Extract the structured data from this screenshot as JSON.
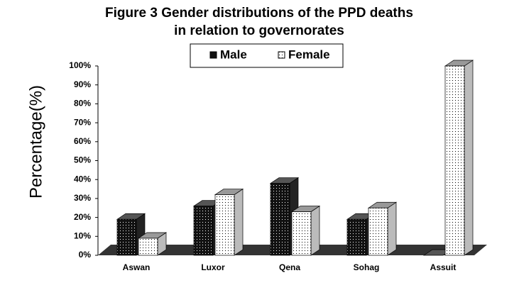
{
  "chart_data": {
    "type": "bar3d",
    "title": "Figure 3 Gender distributions of the PPD deaths",
    "subtitle": "in relation to governorates",
    "y_label": "Percentage(%)",
    "categories": [
      "Aswan",
      "Luxor",
      "Qena",
      "Sohag",
      "Assuit"
    ],
    "series": [
      {
        "name": "Male",
        "color": "#111111",
        "values": [
          19,
          26,
          38,
          19,
          0
        ]
      },
      {
        "name": "Female",
        "color": "#ffffff",
        "values": [
          9,
          32,
          23,
          25,
          100
        ]
      }
    ],
    "ylim": [
      0,
      100
    ],
    "yticks": [
      {
        "value": 0,
        "label": "0%"
      },
      {
        "value": 10,
        "label": "10%"
      },
      {
        "value": 20,
        "label": "20%"
      },
      {
        "value": 30,
        "label": "30%"
      },
      {
        "value": 40,
        "label": "40%"
      },
      {
        "value": 50,
        "label": "50%"
      },
      {
        "value": 60,
        "label": "60%"
      },
      {
        "value": 70,
        "label": "70%"
      },
      {
        "value": 80,
        "label": "80%"
      },
      {
        "value": 90,
        "label": "90%"
      },
      {
        "value": 100,
        "label": "100%"
      }
    ],
    "legend": "top"
  }
}
